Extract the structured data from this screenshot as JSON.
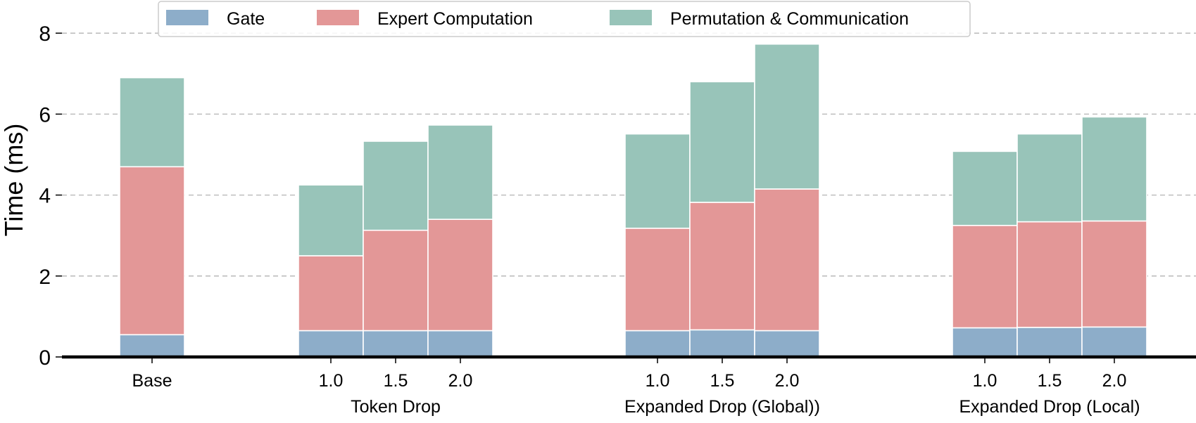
{
  "chart_data": {
    "type": "bar",
    "stacked": true,
    "ylabel": "Time (ms)",
    "xlabel": "",
    "ylim": [
      0,
      8
    ],
    "yticks": [
      0,
      2,
      4,
      6,
      8
    ],
    "grid": "y-dashed",
    "legend_position": "top-center",
    "legend": [
      "Gate",
      "Expert Computation",
      "Permutation & Communication"
    ],
    "colors": {
      "Gate": "#8dadc9",
      "Expert Computation": "#e39797",
      "Permutation & Communication": "#98c4b9",
      "grid": "#b3b3b3",
      "axis": "#000000",
      "bar_edge": "#ffffff"
    },
    "groups": [
      {
        "label": "",
        "categories": [
          "Base"
        ]
      },
      {
        "label": "Token Drop",
        "categories": [
          "1.0",
          "1.5",
          "2.0"
        ]
      },
      {
        "label": "Expanded Drop (Global))",
        "categories": [
          "1.0",
          "1.5",
          "2.0"
        ]
      },
      {
        "label": "Expanded Drop (Local)",
        "categories": [
          "1.0",
          "1.5",
          "2.0"
        ]
      }
    ],
    "series": [
      {
        "name": "Gate",
        "values": [
          0.55,
          0.65,
          0.65,
          0.65,
          0.65,
          0.67,
          0.65,
          0.72,
          0.73,
          0.74
        ]
      },
      {
        "name": "Expert Computation",
        "values": [
          4.15,
          1.85,
          2.48,
          2.75,
          2.53,
          3.15,
          3.5,
          2.53,
          2.61,
          2.62
        ]
      },
      {
        "name": "Permutation & Communication",
        "values": [
          2.2,
          1.75,
          2.2,
          2.33,
          2.33,
          2.98,
          3.58,
          1.83,
          2.17,
          2.57
        ]
      }
    ]
  }
}
